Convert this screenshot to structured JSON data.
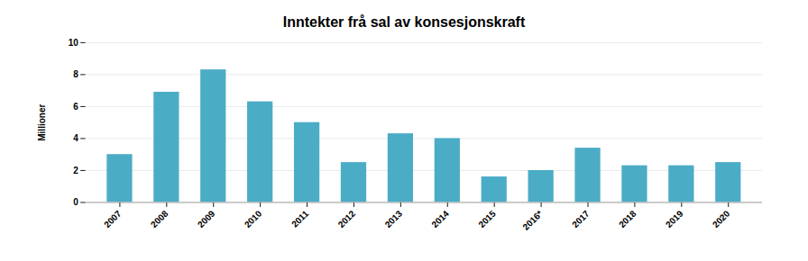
{
  "chart_data": {
    "type": "bar",
    "title": "Inntekter frå sal av konsesjonskraft",
    "ylabel": "Millioner",
    "categories": [
      "2007",
      "2008",
      "2009",
      "2010",
      "2011",
      "2012",
      "2013",
      "2014",
      "2015",
      "2016*",
      "2017",
      "2018",
      "2019",
      "2020"
    ],
    "values": [
      3.0,
      6.9,
      8.3,
      6.3,
      5.0,
      2.5,
      4.3,
      4.0,
      1.6,
      2.0,
      3.4,
      2.3,
      2.3,
      2.5
    ],
    "color": "#4BACC6",
    "ylim": [
      0,
      10
    ],
    "yticks": [
      0,
      2,
      4,
      6,
      8,
      10
    ],
    "grid": true
  }
}
